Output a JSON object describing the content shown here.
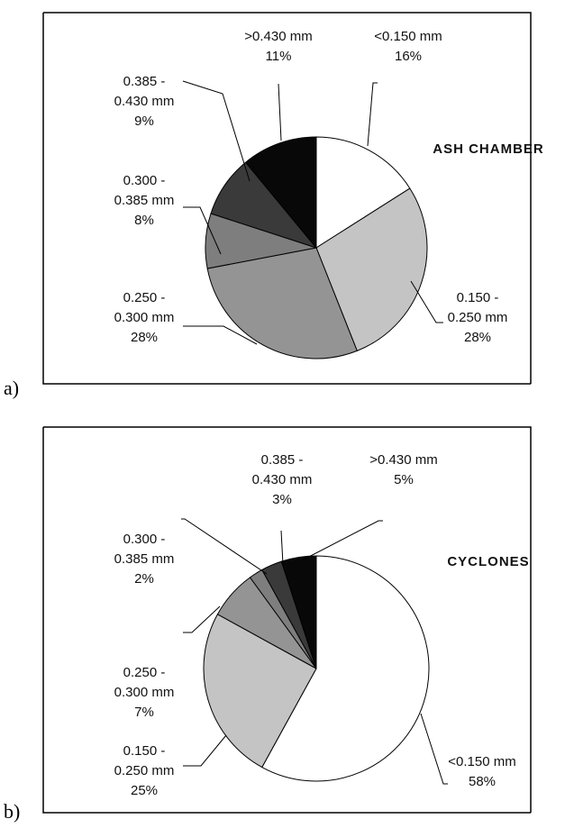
{
  "panels": [
    {
      "letter": "a)"
    },
    {
      "letter": "b)"
    }
  ],
  "chart_data": [
    {
      "type": "pie",
      "title": "ASH CHAMBER",
      "series": [
        {
          "name": "<0.150 mm",
          "value": 16,
          "value_label": "16%",
          "label_lines": [
            "<0.150 mm"
          ],
          "color": "#ffffff"
        },
        {
          "name": "0.150 - 0.250 mm",
          "value": 28,
          "value_label": "28%",
          "label_lines": [
            "0.150 -",
            "0.250 mm"
          ],
          "color": "#c4c4c4"
        },
        {
          "name": "0.250 - 0.300 mm",
          "value": 28,
          "value_label": "28%",
          "label_lines": [
            "0.250 -",
            "0.300 mm"
          ],
          "color": "#949494"
        },
        {
          "name": "0.300 - 0.385 mm",
          "value": 8,
          "value_label": "8%",
          "label_lines": [
            "0.300 -",
            "0.385 mm"
          ],
          "color": "#7e7e7e"
        },
        {
          "name": "0.385 - 0.430 mm",
          "value": 9,
          "value_label": "9%",
          "label_lines": [
            "0.385 -",
            "0.430 mm"
          ],
          "color": "#3a3a3a"
        },
        {
          "name": ">0.430 mm",
          "value": 11,
          "value_label": "11%",
          "label_lines": [
            ">0.430 mm"
          ],
          "color": "#080808"
        }
      ]
    },
    {
      "type": "pie",
      "title": "CYCLONES",
      "series": [
        {
          "name": "<0.150 mm",
          "value": 58,
          "value_label": "58%",
          "label_lines": [
            "<0.150 mm"
          ],
          "color": "#ffffff"
        },
        {
          "name": "0.150 - 0.250 mm",
          "value": 25,
          "value_label": "25%",
          "label_lines": [
            "0.150 -",
            "0.250 mm"
          ],
          "color": "#c4c4c4"
        },
        {
          "name": "0.250 - 0.300 mm",
          "value": 7,
          "value_label": "7%",
          "label_lines": [
            "0.250 -",
            "0.300 mm"
          ],
          "color": "#949494"
        },
        {
          "name": "0.300 - 0.385 mm",
          "value": 2,
          "value_label": "2%",
          "label_lines": [
            "0.300 -",
            "0.385 mm"
          ],
          "color": "#7e7e7e"
        },
        {
          "name": "0.385 - 0.430 mm",
          "value": 3,
          "value_label": "3%",
          "label_lines": [
            "0.385 -",
            "0.430 mm"
          ],
          "color": "#3a3a3a"
        },
        {
          "name": ">0.430 mm",
          "value": 5,
          "value_label": "5%",
          "label_lines": [
            ">0.430 mm"
          ],
          "color": "#080808"
        }
      ]
    }
  ]
}
